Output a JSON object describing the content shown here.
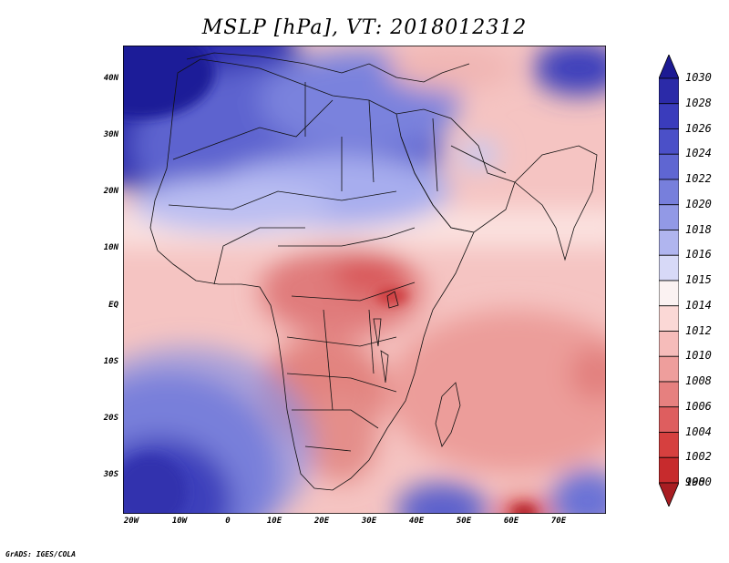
{
  "title": "MSLP [hPa], VT: 2018012312",
  "credit": "GrADS: IGES/COLA",
  "y_axis_labels": [
    "40N",
    "30N",
    "20N",
    "10N",
    "EQ",
    "10S",
    "20S",
    "30S"
  ],
  "x_axis_labels": [
    "20W",
    "10W",
    "0",
    "10E",
    "20E",
    "30E",
    "40E",
    "50E",
    "60E",
    "70E"
  ],
  "colorbar": {
    "labels": [
      "1030",
      "1028",
      "1026",
      "1024",
      "1022",
      "1020",
      "1018",
      "1016",
      "1015",
      "1014",
      "1012",
      "1010",
      "1008",
      "1006",
      "1004",
      "1002",
      "1000",
      "998"
    ],
    "colors": [
      "#1c1a93",
      "#2b2aa8",
      "#3a3cbc",
      "#4b50c8",
      "#5f66d2",
      "#777fdc",
      "#9299e6",
      "#b0b5ef",
      "#d7d9f7",
      "#fbf2f2",
      "#fbd8d6",
      "#f6bcba",
      "#ee9e9c",
      "#e6807f",
      "#de5e5f",
      "#d6403f",
      "#c72b2d",
      "#a81d22"
    ]
  }
}
